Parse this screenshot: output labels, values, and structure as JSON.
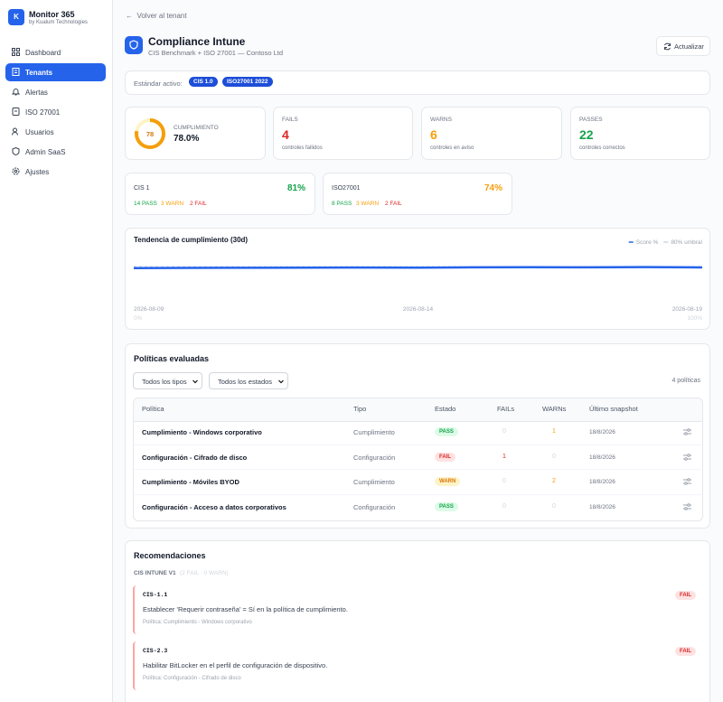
{
  "sidebar": {
    "logo": "K",
    "brand": "Monitor 365",
    "subtitle": "by Kualum Technologies",
    "nav": [
      "Dashboard",
      "Tenants",
      "Alertas",
      "ISO 27001",
      "Usuarios",
      "Admin SaaS",
      "Ajustes"
    ]
  },
  "back_link": "Volver al tenant",
  "header": {
    "title": "Compliance Intune",
    "subtitle": "CIS Benchmark + ISO 27001 — Contoso Ltd",
    "refresh": "Actualizar"
  },
  "standards": {
    "label": "Estándar activo:",
    "chips": [
      "CIS 1.0",
      "ISO27001 2022"
    ]
  },
  "kpis": {
    "compliance": {
      "label": "CUMPLIMIENTO",
      "score": 78,
      "value": "78.0%"
    },
    "cards": [
      {
        "label": "FAILS",
        "value": 4,
        "note": "controles fallidos"
      },
      {
        "label": "WARNS",
        "value": 6,
        "note": "controles en aviso"
      },
      {
        "label": "PASSES",
        "value": 22,
        "note": "controles correctos"
      }
    ]
  },
  "frameworks": [
    {
      "name": "CIS 1",
      "score": "81%",
      "pass": "14 PASS",
      "warn": "3 WARN",
      "fail": "2 FAIL"
    },
    {
      "name": "ISO27001",
      "score": "74%",
      "pass": "8 PASS",
      "warn": "3 WARN",
      "fail": "2 FAIL"
    }
  ],
  "chart_data": {
    "type": "line",
    "title": "Tendencia de cumplimiento (30d)",
    "x": [
      "2026-08-09",
      "2026-08-10",
      "2026-08-11",
      "2026-08-12",
      "2026-08-13",
      "2026-08-14",
      "2026-08-15",
      "2026-08-16",
      "2026-08-17",
      "2026-08-18",
      "2026-08-19"
    ],
    "xticks": [
      "2026-08-09",
      "2026-08-14",
      "2026-08-19"
    ],
    "series": [
      {
        "name": "Score %",
        "color": "#2563eb",
        "values": [
          76.5,
          77,
          77.2,
          77.5,
          77.8,
          77.6,
          78.2,
          78.5,
          78.3,
          78.8,
          78
        ]
      }
    ],
    "threshold": {
      "name": "80% umbral",
      "value": 80,
      "color": "#cbd5e1"
    },
    "ylim": [
      0,
      100
    ],
    "yticks": [
      {
        "value": 0,
        "label": "0%"
      },
      {
        "value": 100,
        "label": "100%"
      }
    ]
  },
  "policies": {
    "title": "Políticas evaluadas",
    "filters": [
      "Todos los tipos",
      "Todos los estados"
    ],
    "count": "4 políticas",
    "columns": [
      "Política",
      "Tipo",
      "Estado",
      "FAILs",
      "WARNs",
      "Último snapshot"
    ],
    "rows": [
      [
        "Cumplimiento - Windows corporativo",
        "Cumplimiento",
        "PASS",
        0,
        1,
        "18/8/2026"
      ],
      [
        "Configuración - Cifrado de disco",
        "Configuración",
        "FAIL",
        1,
        0,
        "18/8/2026"
      ],
      [
        "Cumplimiento - Móviles BYOD",
        "Cumplimiento",
        "WARN",
        0,
        2,
        "18/8/2026"
      ],
      [
        "Configuración - Acceso a datos corporativos",
        "Configuración",
        "PASS",
        0,
        0,
        "18/8/2026"
      ]
    ]
  },
  "recommendations": {
    "title": "Recomendaciones",
    "group": "CIS INTUNE V1",
    "group_summary": "(2 FAIL · 0 WARN)",
    "items": [
      {
        "code": "CIS-1.1",
        "status": "FAIL",
        "text": "Establecer 'Requerir contraseña' = Sí en la política de cumplimiento.",
        "policy": "Política: Cumplimiento - Windows corporativo"
      },
      {
        "code": "CIS-2.3",
        "status": "FAIL",
        "text": "Habilitar BitLocker en el perfil de configuración de dispositivo.",
        "policy": "Política: Configuración - Cifrado de disco"
      }
    ]
  }
}
